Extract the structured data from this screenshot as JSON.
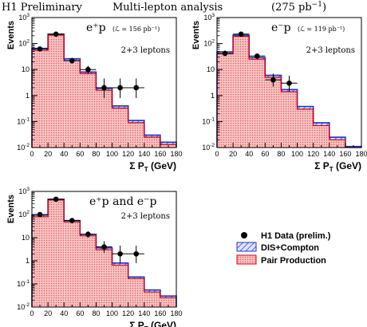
{
  "header": {
    "experiment": "H1 Preliminary",
    "analysis": "Multi-lepton analysis",
    "luminosity": "(275 pb",
    "lumi_exp": "−1",
    "lumi_close": ")"
  },
  "legend": {
    "data_label": "H1 Data (prelim.)",
    "dis_label": "DIS+Compton",
    "pair_label": "Pair Production"
  },
  "colors": {
    "pair_fill": "#f4b0b0",
    "pair_line": "#d40000",
    "dis_fill": "#c7d0f4",
    "dis_line": "#1f2fd0",
    "data": "#000000"
  },
  "chart_data": [
    {
      "type": "bar",
      "panel_label": "e⁺p",
      "lumi_text": "(ℒ = 156 pb⁻¹)",
      "selection": "2+3 leptons",
      "ylabel": "Events",
      "xlabel": "Σ P",
      "xlabel_sub": "T",
      "xlabel_unit": " (GeV)",
      "xlim": [
        0,
        180
      ],
      "ylim": [
        0.01,
        1000
      ],
      "yscale": "log",
      "x_ticks": [
        0,
        20,
        40,
        60,
        80,
        100,
        120,
        140,
        160,
        180
      ],
      "y_ticks": [
        {
          "base": "10",
          "exp": "-2",
          "v": 0.01
        },
        {
          "base": "10",
          "exp": "-1",
          "v": 0.1
        },
        {
          "base": "1",
          "exp": "",
          "v": 1
        },
        {
          "base": "10",
          "exp": "",
          "v": 10
        },
        {
          "base": "10",
          "exp": "2",
          "v": 100
        },
        {
          "base": "10",
          "exp": "3",
          "v": 1000
        }
      ],
      "bin_edges": [
        0,
        20,
        40,
        60,
        80,
        100,
        120,
        140,
        160,
        180
      ],
      "series": [
        {
          "name": "Pair Production",
          "values": [
            55,
            210,
            22,
            7,
            1.6,
            0.33,
            0.09,
            0.025,
            0.013
          ]
        },
        {
          "name": "DIS+Compton",
          "values": [
            65,
            230,
            26,
            8,
            1.9,
            0.4,
            0.11,
            0.03,
            0.016
          ]
        }
      ],
      "data_points": [
        {
          "x": 10,
          "y": 62,
          "ylo": 50,
          "yhi": 76
        },
        {
          "x": 30,
          "y": 230,
          "ylo": 205,
          "yhi": 258
        },
        {
          "x": 50,
          "y": 22,
          "ylo": 17,
          "yhi": 28
        },
        {
          "x": 70,
          "y": 10,
          "ylo": 6.8,
          "yhi": 14
        },
        {
          "x": 90,
          "y": 2,
          "ylo": 0.8,
          "yhi": 4.5
        },
        {
          "x": 110,
          "y": 2,
          "ylo": 0.8,
          "yhi": 4.5
        },
        {
          "x": 130,
          "y": 2,
          "ylo": 0.8,
          "yhi": 4.5
        }
      ]
    },
    {
      "type": "bar",
      "panel_label": "e⁻p",
      "lumi_text": "(ℒ = 119 pb⁻¹)",
      "selection": "2+3 leptons",
      "ylabel": "Events",
      "xlabel": "Σ P",
      "xlabel_sub": "T",
      "xlabel_unit": " (GeV)",
      "xlim": [
        0,
        180
      ],
      "ylim": [
        0.01,
        1000
      ],
      "yscale": "log",
      "x_ticks": [
        0,
        20,
        40,
        60,
        80,
        100,
        120,
        140,
        160,
        180
      ],
      "y_ticks": [
        {
          "base": "10",
          "exp": "-2",
          "v": 0.01
        },
        {
          "base": "10",
          "exp": "-1",
          "v": 0.1
        },
        {
          "base": "1",
          "exp": "",
          "v": 1
        },
        {
          "base": "10",
          "exp": "",
          "v": 10
        },
        {
          "base": "10",
          "exp": "2",
          "v": 100
        },
        {
          "base": "10",
          "exp": "3",
          "v": 1000
        }
      ],
      "bin_edges": [
        0,
        20,
        40,
        60,
        80,
        100,
        120,
        140,
        160,
        180
      ],
      "series": [
        {
          "name": "Pair Production",
          "values": [
            40,
            190,
            25,
            5,
            1.4,
            0.3,
            0.07,
            0.02,
            0.01
          ]
        },
        {
          "name": "DIS+Compton",
          "values": [
            48,
            210,
            29,
            6,
            1.7,
            0.38,
            0.09,
            0.025,
            0.011
          ]
        }
      ],
      "data_points": [
        {
          "x": 10,
          "y": 42,
          "ylo": 33,
          "yhi": 53
        },
        {
          "x": 30,
          "y": 230,
          "ylo": 205,
          "yhi": 258
        },
        {
          "x": 50,
          "y": 33,
          "ylo": 27,
          "yhi": 40
        },
        {
          "x": 70,
          "y": 4,
          "ylo": 2.2,
          "yhi": 7
        },
        {
          "x": 90,
          "y": 3,
          "ylo": 1.4,
          "yhi": 5.8
        }
      ]
    },
    {
      "type": "bar",
      "panel_label": "e⁺p and e⁻p",
      "lumi_text": "",
      "selection": "2+3 leptons",
      "ylabel": "Events",
      "xlabel": "Σ P",
      "xlabel_sub": "T",
      "xlabel_unit": " (GeV)",
      "xlim": [
        0,
        180
      ],
      "ylim": [
        0.01,
        1000
      ],
      "yscale": "log",
      "x_ticks": [
        0,
        20,
        40,
        60,
        80,
        100,
        120,
        140,
        160,
        180
      ],
      "y_ticks": [
        {
          "base": "10",
          "exp": "-2",
          "v": 0.01
        },
        {
          "base": "10",
          "exp": "-1",
          "v": 0.1
        },
        {
          "base": "1",
          "exp": "",
          "v": 1
        },
        {
          "base": "10",
          "exp": "",
          "v": 10
        },
        {
          "base": "10",
          "exp": "2",
          "v": 100
        },
        {
          "base": "10",
          "exp": "3",
          "v": 1000
        }
      ],
      "bin_edges": [
        0,
        20,
        40,
        60,
        80,
        100,
        120,
        140,
        160,
        180
      ],
      "series": [
        {
          "name": "Pair Production",
          "values": [
            80,
            420,
            48,
            12,
            3,
            0.65,
            0.17,
            0.045,
            0.025
          ]
        },
        {
          "name": "DIS+Compton",
          "values": [
            95,
            460,
            55,
            14,
            3.6,
            0.8,
            0.2,
            0.055,
            0.03
          ]
        }
      ],
      "data_points": [
        {
          "x": 10,
          "y": 100,
          "ylo": 85,
          "yhi": 118
        },
        {
          "x": 30,
          "y": 460,
          "ylo": 425,
          "yhi": 498
        },
        {
          "x": 50,
          "y": 55,
          "ylo": 46,
          "yhi": 66
        },
        {
          "x": 70,
          "y": 14,
          "ylo": 10,
          "yhi": 19
        },
        {
          "x": 90,
          "y": 4,
          "ylo": 2.2,
          "yhi": 7
        },
        {
          "x": 110,
          "y": 2,
          "ylo": 0.8,
          "yhi": 4.5
        },
        {
          "x": 130,
          "y": 2,
          "ylo": 0.8,
          "yhi": 4.5
        }
      ]
    }
  ]
}
